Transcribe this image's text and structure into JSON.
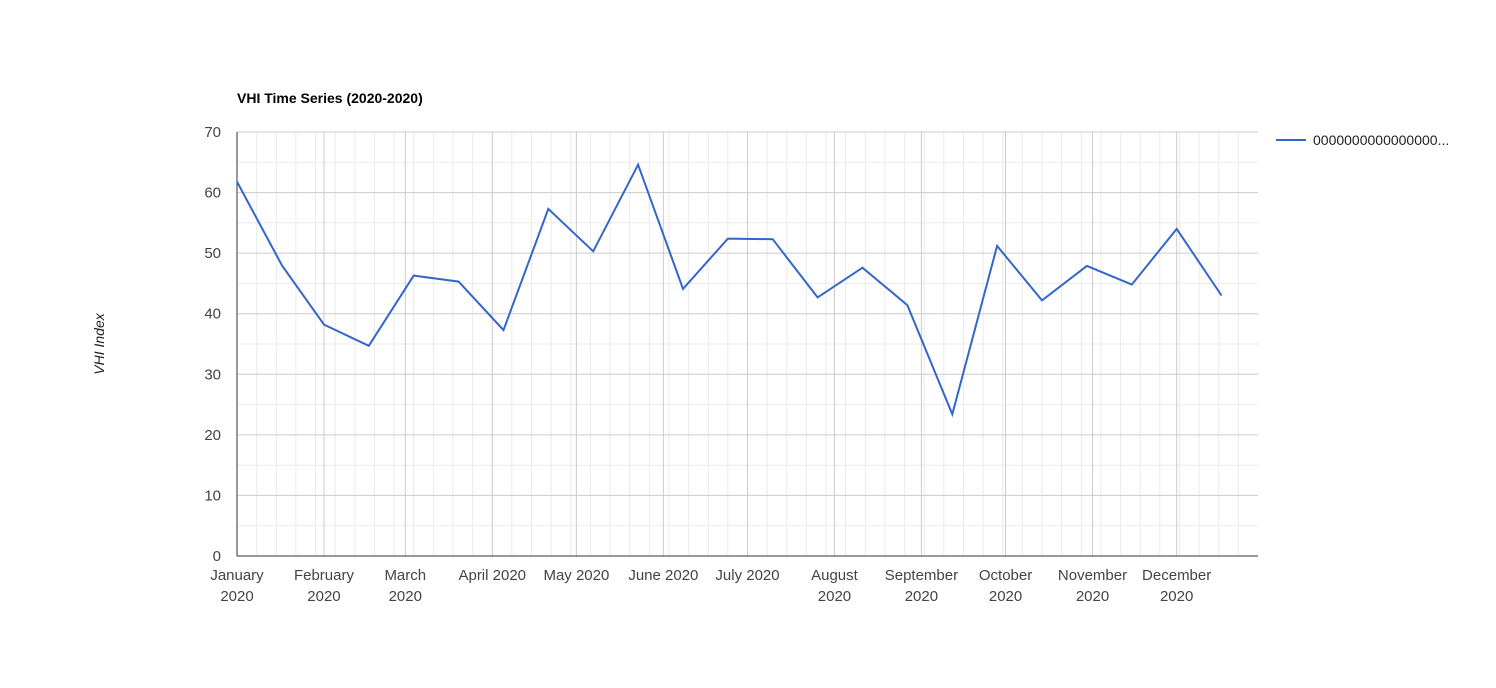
{
  "chart_data": {
    "type": "line",
    "title": "VHI Time Series (2020-2020)",
    "xlabel": "",
    "ylabel": "VHI Index",
    "ylim": [
      0,
      70
    ],
    "yticks": [
      0,
      10,
      20,
      30,
      40,
      50,
      60,
      70
    ],
    "grid": true,
    "legend_position": "right",
    "line_color": "#3366cc",
    "x": [
      "2020-01-01",
      "2020-01-17",
      "2020-02-01",
      "2020-02-17",
      "2020-03-04",
      "2020-03-20",
      "2020-04-05",
      "2020-04-21",
      "2020-05-07",
      "2020-05-23",
      "2020-06-08",
      "2020-06-24",
      "2020-07-10",
      "2020-07-26",
      "2020-08-11",
      "2020-08-27",
      "2020-09-12",
      "2020-09-28",
      "2020-10-14",
      "2020-10-30",
      "2020-11-15",
      "2020-12-01",
      "2020-12-17"
    ],
    "x_tick_labels": [
      {
        "date": "2020-01-01",
        "line1": "January",
        "line2": "2020"
      },
      {
        "date": "2020-02-01",
        "line1": "February",
        "line2": "2020"
      },
      {
        "date": "2020-03-01",
        "line1": "March",
        "line2": "2020"
      },
      {
        "date": "2020-04-01",
        "line1": "April 2020",
        "line2": ""
      },
      {
        "date": "2020-05-01",
        "line1": "May 2020",
        "line2": ""
      },
      {
        "date": "2020-06-01",
        "line1": "June 2020",
        "line2": ""
      },
      {
        "date": "2020-07-01",
        "line1": "July 2020",
        "line2": ""
      },
      {
        "date": "2020-08-01",
        "line1": "August",
        "line2": "2020"
      },
      {
        "date": "2020-09-01",
        "line1": "September",
        "line2": "2020"
      },
      {
        "date": "2020-10-01",
        "line1": "October",
        "line2": "2020"
      },
      {
        "date": "2020-11-01",
        "line1": "November",
        "line2": "2020"
      },
      {
        "date": "2020-12-01",
        "line1": "December",
        "line2": "2020"
      }
    ],
    "series": [
      {
        "name": "0000000000000000...",
        "values": [
          61.8,
          48.0,
          38.2,
          34.7,
          46.3,
          45.3,
          37.3,
          57.3,
          50.3,
          64.6,
          44.1,
          52.4,
          52.3,
          42.7,
          47.6,
          41.4,
          23.4,
          51.2,
          42.2,
          47.9,
          44.8,
          54.0,
          43.0
        ]
      }
    ]
  }
}
